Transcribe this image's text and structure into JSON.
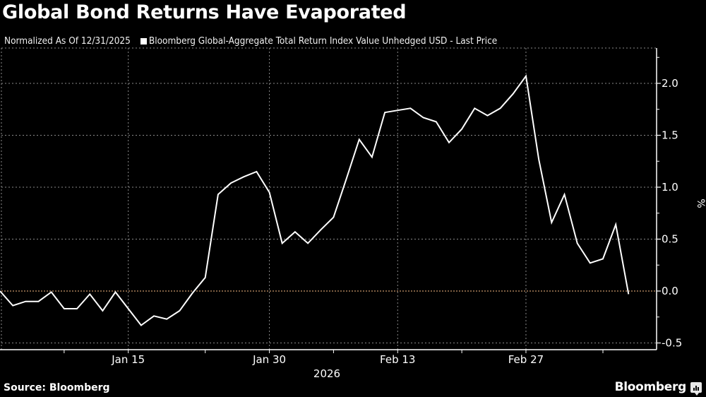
{
  "header": {
    "title": "Global Bond Returns Have Evaporated",
    "note": "Normalized As Of 12/31/2025",
    "legend_label": "Bloomberg Global-Aggregate Total Return Index Value Unhedged USD - Last Price"
  },
  "footer": {
    "source": "Source: Bloomberg",
    "brand": "Bloomberg",
    "brand_icon": "bloomberg-chart-icon"
  },
  "colors": {
    "background": "#000000",
    "series": "#ffffff",
    "zero_line": "#c8966a",
    "grid": "#8a8a8a"
  },
  "chart_data": {
    "type": "line",
    "title": "Global Bond Returns Have Evaporated",
    "subtitle": "Normalized As Of 12/31/2025",
    "xlabel": "2026",
    "ylabel": "%",
    "ylim": [
      -0.55,
      2.3
    ],
    "yticks": [
      2.0,
      1.5,
      1.0,
      0.5,
      0.0,
      -0.5
    ],
    "ytick_labels": [
      "2.0",
      "1.5",
      "1.0",
      "0.5",
      "0.0",
      "-0.5"
    ],
    "xtick_labels": [
      "Jan 15",
      "Jan 30",
      "Feb 13",
      "Feb 27"
    ],
    "xtick_indices": [
      10,
      21,
      31,
      41
    ],
    "x_year_label": "2026",
    "grid": true,
    "legend_position": "top",
    "reference_line": 0.0,
    "series": [
      {
        "name": "Bloomberg Global-Aggregate Total Return Index Value Unhedged USD - Last Price",
        "values": [
          0.0,
          -0.14,
          -0.1,
          -0.1,
          -0.01,
          -0.17,
          -0.17,
          -0.03,
          -0.19,
          -0.01,
          -0.17,
          -0.33,
          -0.24,
          -0.27,
          -0.19,
          -0.02,
          0.13,
          0.93,
          1.04,
          1.1,
          1.15,
          0.95,
          0.46,
          0.57,
          0.46,
          0.59,
          0.71,
          1.08,
          1.46,
          1.29,
          1.72,
          1.74,
          1.76,
          1.67,
          1.63,
          1.43,
          1.56,
          1.76,
          1.69,
          1.76,
          1.9,
          2.07,
          1.27,
          0.66,
          0.93,
          0.46,
          0.27,
          0.31,
          0.64,
          -0.03
        ]
      }
    ]
  }
}
